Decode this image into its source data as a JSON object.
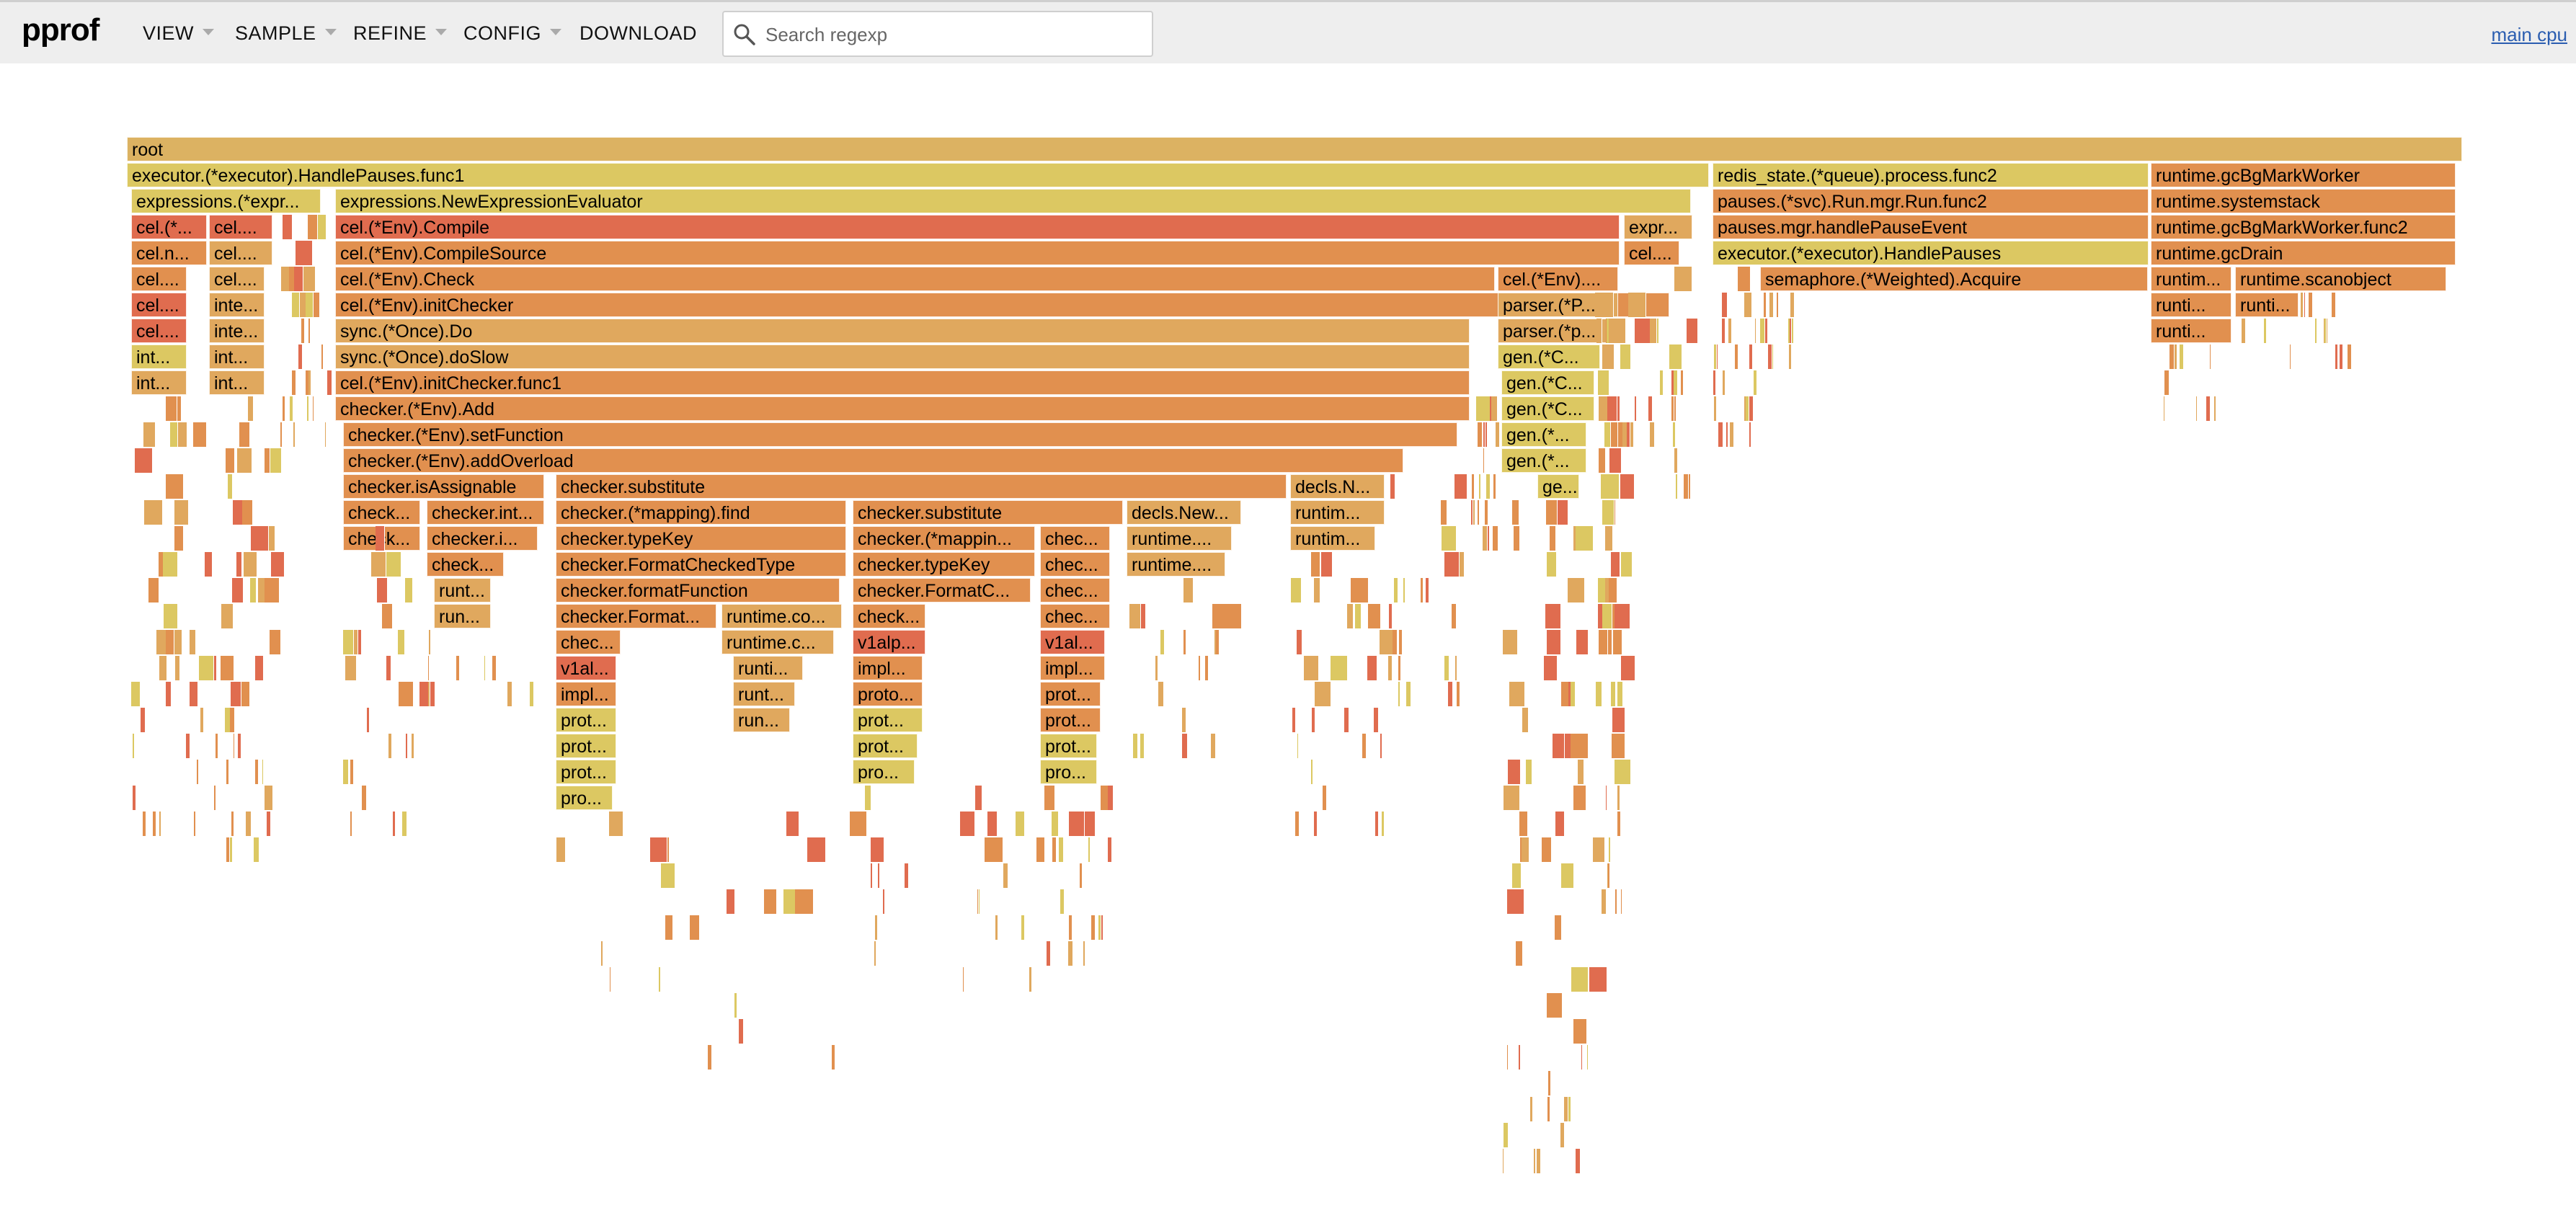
{
  "header": {
    "logo": "pprof",
    "menus": [
      {
        "label": "VIEW"
      },
      {
        "label": "SAMPLE"
      },
      {
        "label": "REFINE"
      },
      {
        "label": "CONFIG"
      },
      {
        "label": "DOWNLOAD"
      }
    ],
    "search": {
      "placeholder": "Search regexp",
      "value": ""
    },
    "profile_link": "main cpu"
  },
  "colors": {
    "header_bg": "#eeeeee",
    "root": "#dcb262",
    "yellow": "#dcc862",
    "orange": "#e1904f",
    "orange_light": "#e0a85e",
    "red": "#e06c4f",
    "link": "#2a5db0"
  },
  "flame": {
    "frames": [
      {
        "label": "root",
        "depth": 0,
        "start": 0.0,
        "width": 1.0,
        "color": "root"
      },
      {
        "label": "executor.(*executor).HandlePauses.func1",
        "depth": 1,
        "start": 0.0,
        "width": 0.6774,
        "color": "yellow"
      },
      {
        "label": "redis_state.(*queue).process.func2",
        "depth": 1,
        "start": 0.679,
        "width": 0.1866,
        "color": "yellow"
      },
      {
        "label": "runtime.gcBgMarkWorker",
        "depth": 1,
        "start": 0.8667,
        "width": 0.1306,
        "color": "orange"
      },
      {
        "label": "expressions.(*expr...",
        "depth": 2,
        "start": 0.0017,
        "width": 0.0812,
        "color": "yellow"
      },
      {
        "label": "expressions.NewExpressionEvaluator",
        "depth": 2,
        "start": 0.0893,
        "width": 0.5806,
        "color": "yellow"
      },
      {
        "label": "pauses.(*svc).Run.mgr.Run.func2",
        "depth": 2,
        "start": 0.679,
        "width": 0.1866,
        "color": "orange"
      },
      {
        "label": "runtime.systemstack",
        "depth": 2,
        "start": 0.8667,
        "width": 0.1306,
        "color": "orange"
      },
      {
        "label": "cel.(*...",
        "depth": 3,
        "start": 0.0017,
        "width": 0.0325,
        "color": "red"
      },
      {
        "label": "cel....",
        "depth": 3,
        "start": 0.0351,
        "width": 0.0272,
        "color": "red"
      },
      {
        "label": "cel.(*Env).Compile",
        "depth": 3,
        "start": 0.0893,
        "width": 0.5501,
        "color": "red"
      },
      {
        "label": "expr...",
        "depth": 3,
        "start": 0.641,
        "width": 0.0292,
        "color": "orange_light"
      },
      {
        "label": "pauses.mgr.handlePauseEvent",
        "depth": 3,
        "start": 0.679,
        "width": 0.1866,
        "color": "orange"
      },
      {
        "label": "runtime.gcBgMarkWorker.func2",
        "depth": 3,
        "start": 0.8667,
        "width": 0.1306,
        "color": "orange"
      },
      {
        "label": "cel.n...",
        "depth": 4,
        "start": 0.0017,
        "width": 0.0325,
        "color": "orange"
      },
      {
        "label": "cel....",
        "depth": 4,
        "start": 0.0351,
        "width": 0.0272,
        "color": "orange_light"
      },
      {
        "label": "cel.(*Env).CompileSource",
        "depth": 4,
        "start": 0.0893,
        "width": 0.5501,
        "color": "orange"
      },
      {
        "label": "cel....",
        "depth": 4,
        "start": 0.641,
        "width": 0.0239,
        "color": "orange"
      },
      {
        "label": "executor.(*executor).HandlePauses",
        "depth": 4,
        "start": 0.679,
        "width": 0.1866,
        "color": "yellow"
      },
      {
        "label": "runtime.gcDrain",
        "depth": 4,
        "start": 0.8667,
        "width": 0.1306,
        "color": "orange"
      },
      {
        "label": "cel....",
        "depth": 5,
        "start": 0.0017,
        "width": 0.0239,
        "color": "orange"
      },
      {
        "label": "cel....",
        "depth": 5,
        "start": 0.0351,
        "width": 0.0239,
        "color": "orange_light"
      },
      {
        "label": "cel.(*Env).Check",
        "depth": 5,
        "start": 0.0893,
        "width": 0.4966,
        "color": "orange"
      },
      {
        "label": "cel.(*Env)....",
        "depth": 5,
        "start": 0.5869,
        "width": 0.0516,
        "color": "orange"
      },
      {
        "label": "semaphore.(*Weighted).Acquire",
        "depth": 5,
        "start": 0.6995,
        "width": 0.1661,
        "color": "orange"
      },
      {
        "label": "runtim...",
        "depth": 5,
        "start": 0.8667,
        "width": 0.0345,
        "color": "orange"
      },
      {
        "label": "runtime.scanobject",
        "depth": 5,
        "start": 0.9029,
        "width": 0.0905,
        "color": "orange"
      },
      {
        "label": "cel....",
        "depth": 6,
        "start": 0.0017,
        "width": 0.0239,
        "color": "red"
      },
      {
        "label": "inte...",
        "depth": 6,
        "start": 0.0351,
        "width": 0.0239,
        "color": "orange_light"
      },
      {
        "label": "cel.(*Env).initChecker",
        "depth": 6,
        "start": 0.0893,
        "width": 0.5712,
        "color": "orange"
      },
      {
        "label": "parser.(*P...",
        "depth": 6,
        "start": 0.5869,
        "width": 0.0516,
        "color": "orange_light"
      },
      {
        "label": "runti...",
        "depth": 6,
        "start": 0.8667,
        "width": 0.0345,
        "color": "orange"
      },
      {
        "label": "runti...",
        "depth": 6,
        "start": 0.9029,
        "width": 0.0272,
        "color": "orange"
      },
      {
        "label": "cel....",
        "depth": 7,
        "start": 0.0017,
        "width": 0.0239,
        "color": "red"
      },
      {
        "label": "inte...",
        "depth": 7,
        "start": 0.0351,
        "width": 0.0239,
        "color": "orange_light"
      },
      {
        "label": "sync.(*Once).Do",
        "depth": 7,
        "start": 0.0893,
        "width": 0.4857,
        "color": "orange_light"
      },
      {
        "label": "parser.(*p...",
        "depth": 7,
        "start": 0.5869,
        "width": 0.0516,
        "color": "orange_light"
      },
      {
        "label": "runti...",
        "depth": 7,
        "start": 0.8667,
        "width": 0.0345,
        "color": "orange"
      },
      {
        "label": "int...",
        "depth": 8,
        "start": 0.0017,
        "width": 0.0239,
        "color": "yellow"
      },
      {
        "label": "int...",
        "depth": 8,
        "start": 0.0351,
        "width": 0.0239,
        "color": "orange_light"
      },
      {
        "label": "sync.(*Once).doSlow",
        "depth": 8,
        "start": 0.0893,
        "width": 0.4857,
        "color": "orange_light"
      },
      {
        "label": "gen.(*C...",
        "depth": 8,
        "start": 0.5869,
        "width": 0.0437,
        "color": "yellow"
      },
      {
        "label": "int...",
        "depth": 9,
        "start": 0.0017,
        "width": 0.0239,
        "color": "orange_light"
      },
      {
        "label": "int...",
        "depth": 9,
        "start": 0.0351,
        "width": 0.0239,
        "color": "orange_light"
      },
      {
        "label": "cel.(*Env).initChecker.func1",
        "depth": 9,
        "start": 0.0893,
        "width": 0.4857,
        "color": "orange"
      },
      {
        "label": "gen.(*C...",
        "depth": 9,
        "start": 0.5887,
        "width": 0.0397,
        "color": "yellow"
      },
      {
        "label": "checker.(*Env).Add",
        "depth": 10,
        "start": 0.0893,
        "width": 0.4857,
        "color": "orange"
      },
      {
        "label": "gen.(*C...",
        "depth": 10,
        "start": 0.5887,
        "width": 0.0397,
        "color": "yellow"
      },
      {
        "label": "checker.(*Env).setFunction",
        "depth": 11,
        "start": 0.0925,
        "width": 0.4772,
        "color": "orange"
      },
      {
        "label": "gen.(*...",
        "depth": 11,
        "start": 0.5887,
        "width": 0.0364,
        "color": "yellow"
      },
      {
        "label": "checker.(*Env).addOverload",
        "depth": 12,
        "start": 0.0925,
        "width": 0.4541,
        "color": "orange"
      },
      {
        "label": "gen.(*...",
        "depth": 12,
        "start": 0.5887,
        "width": 0.0364,
        "color": "yellow"
      },
      {
        "label": "checker.isAssignable",
        "depth": 13,
        "start": 0.0925,
        "width": 0.086,
        "color": "orange"
      },
      {
        "label": "checker.substitute",
        "depth": 13,
        "start": 0.1837,
        "width": 0.313,
        "color": "orange"
      },
      {
        "label": "decls.N...",
        "depth": 13,
        "start": 0.4983,
        "width": 0.0404,
        "color": "orange_light"
      },
      {
        "label": "ge...",
        "depth": 13,
        "start": 0.6039,
        "width": 0.0179,
        "color": "yellow"
      },
      {
        "label": "check...",
        "depth": 14,
        "start": 0.0925,
        "width": 0.0331,
        "color": "orange"
      },
      {
        "label": "checker.int...",
        "depth": 14,
        "start": 0.1283,
        "width": 0.0503,
        "color": "orange"
      },
      {
        "label": "checker.(*mapping).find",
        "depth": 14,
        "start": 0.1837,
        "width": 0.1244,
        "color": "orange"
      },
      {
        "label": "checker.substitute",
        "depth": 14,
        "start": 0.3108,
        "width": 0.1156,
        "color": "orange"
      },
      {
        "label": "decls.New...",
        "depth": 14,
        "start": 0.4281,
        "width": 0.049,
        "color": "orange_light"
      },
      {
        "label": "runtim...",
        "depth": 14,
        "start": 0.4983,
        "width": 0.0404,
        "color": "orange_light"
      },
      {
        "label": "check...",
        "depth": 15,
        "start": 0.0925,
        "width": 0.0331,
        "color": "orange"
      },
      {
        "label": "checker.i...",
        "depth": 15,
        "start": 0.1283,
        "width": 0.0476,
        "color": "orange"
      },
      {
        "label": "checker.typeKey",
        "depth": 15,
        "start": 0.1837,
        "width": 0.1244,
        "color": "orange"
      },
      {
        "label": "checker.(*mappin...",
        "depth": 15,
        "start": 0.3108,
        "width": 0.0781,
        "color": "orange"
      },
      {
        "label": "chec...",
        "depth": 15,
        "start": 0.3909,
        "width": 0.0298,
        "color": "orange"
      },
      {
        "label": "runtime....",
        "depth": 15,
        "start": 0.4281,
        "width": 0.045,
        "color": "orange_light"
      },
      {
        "label": "runtim...",
        "depth": 15,
        "start": 0.4983,
        "width": 0.0364,
        "color": "orange_light"
      },
      {
        "label": "check...",
        "depth": 16,
        "start": 0.1283,
        "width": 0.0331,
        "color": "orange"
      },
      {
        "label": "checker.FormatCheckedType",
        "depth": 16,
        "start": 0.1837,
        "width": 0.1244,
        "color": "orange"
      },
      {
        "label": "checker.typeKey",
        "depth": 16,
        "start": 0.3108,
        "width": 0.0781,
        "color": "orange"
      },
      {
        "label": "chec...",
        "depth": 16,
        "start": 0.3909,
        "width": 0.0298,
        "color": "orange"
      },
      {
        "label": "runtime....",
        "depth": 16,
        "start": 0.4281,
        "width": 0.0423,
        "color": "orange_light"
      },
      {
        "label": "runt...",
        "depth": 17,
        "start": 0.1316,
        "width": 0.0245,
        "color": "orange_light"
      },
      {
        "label": "checker.formatFunction",
        "depth": 17,
        "start": 0.1837,
        "width": 0.1217,
        "color": "orange"
      },
      {
        "label": "checker.FormatC...",
        "depth": 17,
        "start": 0.3108,
        "width": 0.0761,
        "color": "orange"
      },
      {
        "label": "chec...",
        "depth": 17,
        "start": 0.3909,
        "width": 0.0298,
        "color": "orange"
      },
      {
        "label": "run...",
        "depth": 18,
        "start": 0.1316,
        "width": 0.0245,
        "color": "orange_light"
      },
      {
        "label": "checker.Format...",
        "depth": 18,
        "start": 0.1837,
        "width": 0.0688,
        "color": "orange"
      },
      {
        "label": "runtime.co...",
        "depth": 18,
        "start": 0.2545,
        "width": 0.0516,
        "color": "orange_light"
      },
      {
        "label": "check...",
        "depth": 18,
        "start": 0.3108,
        "width": 0.0311,
        "color": "orange"
      },
      {
        "label": "chec...",
        "depth": 18,
        "start": 0.3909,
        "width": 0.0298,
        "color": "orange"
      },
      {
        "label": "chec...",
        "depth": 19,
        "start": 0.1837,
        "width": 0.0278,
        "color": "orange"
      },
      {
        "label": "runtime.c...",
        "depth": 19,
        "start": 0.2545,
        "width": 0.0483,
        "color": "orange_light"
      },
      {
        "label": "v1alp...",
        "depth": 19,
        "start": 0.3108,
        "width": 0.0311,
        "color": "red"
      },
      {
        "label": "v1al...",
        "depth": 19,
        "start": 0.3909,
        "width": 0.0278,
        "color": "red"
      },
      {
        "label": "v1al...",
        "depth": 20,
        "start": 0.1837,
        "width": 0.0258,
        "color": "red"
      },
      {
        "label": "runti...",
        "depth": 20,
        "start": 0.2595,
        "width": 0.0298,
        "color": "orange_light"
      },
      {
        "label": "impl...",
        "depth": 20,
        "start": 0.3108,
        "width": 0.0298,
        "color": "orange"
      },
      {
        "label": "impl...",
        "depth": 20,
        "start": 0.3909,
        "width": 0.0278,
        "color": "orange"
      },
      {
        "label": "impl...",
        "depth": 21,
        "start": 0.1837,
        "width": 0.0258,
        "color": "orange"
      },
      {
        "label": "runt...",
        "depth": 21,
        "start": 0.2595,
        "width": 0.0265,
        "color": "orange_light"
      },
      {
        "label": "proto...",
        "depth": 21,
        "start": 0.3108,
        "width": 0.0298,
        "color": "orange"
      },
      {
        "label": "prot...",
        "depth": 21,
        "start": 0.3909,
        "width": 0.0258,
        "color": "orange"
      },
      {
        "label": "prot...",
        "depth": 22,
        "start": 0.1837,
        "width": 0.0258,
        "color": "yellow"
      },
      {
        "label": "run...",
        "depth": 22,
        "start": 0.2595,
        "width": 0.0245,
        "color": "orange_light"
      },
      {
        "label": "prot...",
        "depth": 22,
        "start": 0.3108,
        "width": 0.0298,
        "color": "yellow"
      },
      {
        "label": "prot...",
        "depth": 22,
        "start": 0.3909,
        "width": 0.0258,
        "color": "orange"
      },
      {
        "label": "prot...",
        "depth": 23,
        "start": 0.1837,
        "width": 0.0258,
        "color": "yellow"
      },
      {
        "label": "prot...",
        "depth": 23,
        "start": 0.3108,
        "width": 0.0278,
        "color": "yellow"
      },
      {
        "label": "prot...",
        "depth": 23,
        "start": 0.3909,
        "width": 0.0245,
        "color": "yellow"
      },
      {
        "label": "prot...",
        "depth": 24,
        "start": 0.1837,
        "width": 0.0258,
        "color": "yellow"
      },
      {
        "label": "pro...",
        "depth": 24,
        "start": 0.3108,
        "width": 0.0265,
        "color": "yellow"
      },
      {
        "label": "pro...",
        "depth": 24,
        "start": 0.3909,
        "width": 0.0245,
        "color": "yellow"
      },
      {
        "label": "pro...",
        "depth": 25,
        "start": 0.1837,
        "width": 0.0245,
        "color": "yellow"
      }
    ]
  }
}
